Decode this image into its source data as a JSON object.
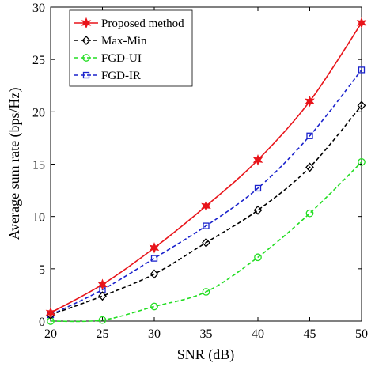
{
  "chart_data": {
    "type": "line",
    "xlabel": "SNR (dB)",
    "ylabel": "Average sum rate (bps/Hz)",
    "xlim": [
      20,
      50
    ],
    "ylim": [
      0,
      30
    ],
    "xticks": [
      "20",
      "25",
      "30",
      "35",
      "40",
      "45",
      "50"
    ],
    "yticks": [
      "0",
      "5",
      "10",
      "15",
      "20",
      "25",
      "30"
    ],
    "grid": false,
    "legend_position": "top-left",
    "x": [
      20,
      25,
      30,
      35,
      40,
      45,
      50
    ],
    "series": [
      {
        "name": "Proposed method",
        "color": "#e8141a",
        "marker": "hexagram",
        "dash": "solid",
        "values": [
          0.8,
          3.5,
          7.0,
          11.0,
          15.4,
          21.0,
          28.5
        ]
      },
      {
        "name": "Max-Min",
        "color": "#000000",
        "marker": "diamond",
        "dash": "dashed",
        "values": [
          0.6,
          2.4,
          4.5,
          7.5,
          10.6,
          14.7,
          20.6
        ]
      },
      {
        "name": "FGD-UI",
        "color": "#22dd22",
        "marker": "circle",
        "dash": "dashed",
        "values": [
          0.0,
          0.1,
          1.4,
          2.8,
          6.1,
          10.3,
          15.2
        ]
      },
      {
        "name": "FGD-IR",
        "color": "#1a22cc",
        "marker": "square",
        "dash": "dashed",
        "values": [
          0.6,
          3.0,
          6.0,
          9.1,
          12.7,
          17.7,
          24.0
        ]
      }
    ]
  }
}
